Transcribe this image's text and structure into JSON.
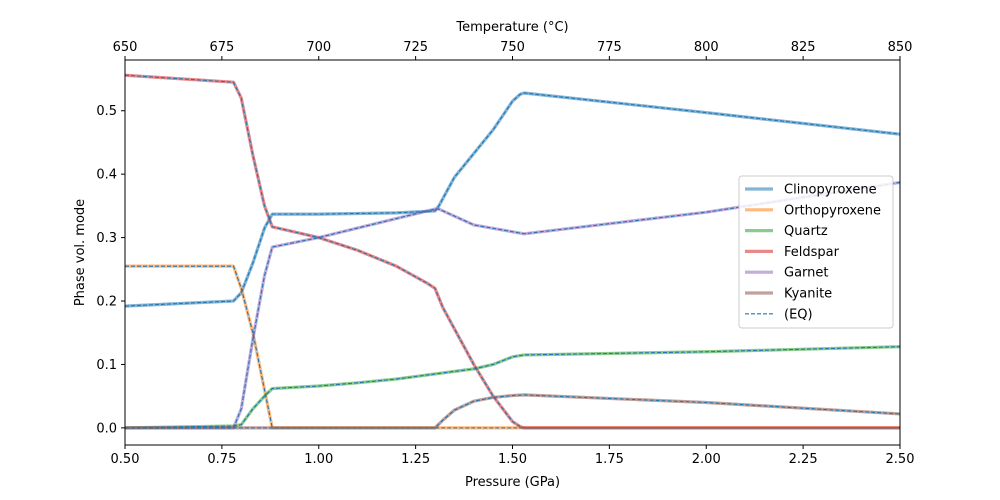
{
  "chart_data": {
    "type": "line",
    "xlabel": "Pressure (GPa)",
    "ylabel": "Phase vol. mode",
    "top_xlabel": "Temperature (°C)",
    "xlim": [
      0.5,
      2.5
    ],
    "ylim": [
      -0.027,
      0.58
    ],
    "top_xlim": [
      650,
      850
    ],
    "x_ticks": [
      0.5,
      0.75,
      1.0,
      1.25,
      1.5,
      1.75,
      2.0,
      2.25,
      2.5
    ],
    "x_tick_labels": [
      "0.50",
      "0.75",
      "1.00",
      "1.25",
      "1.50",
      "1.75",
      "2.00",
      "2.25",
      "2.50"
    ],
    "y_ticks": [
      0.0,
      0.1,
      0.2,
      0.3,
      0.4,
      0.5
    ],
    "y_tick_labels": [
      "0.0",
      "0.1",
      "0.2",
      "0.3",
      "0.4",
      "0.5"
    ],
    "top_ticks": [
      650,
      675,
      700,
      725,
      750,
      775,
      800,
      825,
      850
    ],
    "top_tick_labels": [
      "650",
      "675",
      "700",
      "725",
      "750",
      "775",
      "800",
      "825",
      "850"
    ],
    "grid": false,
    "legend_position": "center-right",
    "series": [
      {
        "name": "Clinopyroxene",
        "color": "#1f77b4",
        "x": [
          0.5,
          0.78,
          0.8,
          0.83,
          0.86,
          0.88,
          1.0,
          1.2,
          1.3,
          1.31,
          1.35,
          1.45,
          1.5,
          1.52,
          1.53,
          2.0,
          2.5
        ],
        "y": [
          0.192,
          0.2,
          0.213,
          0.26,
          0.315,
          0.337,
          0.337,
          0.339,
          0.342,
          0.35,
          0.395,
          0.47,
          0.515,
          0.526,
          0.528,
          0.497,
          0.463
        ]
      },
      {
        "name": "Orthopyroxene",
        "color": "#ff7f0e",
        "x": [
          0.5,
          0.78,
          0.8,
          0.83,
          0.86,
          0.88,
          2.5
        ],
        "y": [
          0.255,
          0.255,
          0.22,
          0.15,
          0.06,
          0.0,
          0.0
        ]
      },
      {
        "name": "Quartz",
        "color": "#2ca02c",
        "x": [
          0.5,
          0.78,
          0.8,
          0.83,
          0.86,
          0.88,
          1.0,
          1.1,
          1.2,
          1.3,
          1.4,
          1.45,
          1.5,
          1.53,
          2.0,
          2.5
        ],
        "y": [
          0.0,
          0.003,
          0.005,
          0.03,
          0.05,
          0.062,
          0.066,
          0.071,
          0.077,
          0.085,
          0.093,
          0.1,
          0.112,
          0.115,
          0.12,
          0.128
        ]
      },
      {
        "name": "Feldspar",
        "color": "#d62728",
        "x": [
          0.5,
          0.78,
          0.8,
          0.83,
          0.86,
          0.88,
          1.0,
          1.1,
          1.2,
          1.28,
          1.3,
          1.32,
          1.4,
          1.45,
          1.5,
          1.52,
          1.53,
          2.5
        ],
        "y": [
          0.556,
          0.545,
          0.52,
          0.43,
          0.35,
          0.317,
          0.3,
          0.28,
          0.255,
          0.228,
          0.22,
          0.19,
          0.1,
          0.05,
          0.01,
          0.002,
          0.0,
          0.0
        ]
      },
      {
        "name": "Garnet",
        "color": "#9467bd",
        "x": [
          0.5,
          0.78,
          0.8,
          0.83,
          0.86,
          0.88,
          1.0,
          1.1,
          1.2,
          1.3,
          1.31,
          1.4,
          1.53,
          2.0,
          2.5
        ],
        "y": [
          0.0,
          0.0,
          0.03,
          0.14,
          0.24,
          0.285,
          0.3,
          0.315,
          0.33,
          0.345,
          0.345,
          0.32,
          0.306,
          0.34,
          0.387
        ]
      },
      {
        "name": "Kyanite",
        "color": "#8c564b",
        "x": [
          0.5,
          1.3,
          1.32,
          1.35,
          1.4,
          1.45,
          1.5,
          1.53,
          2.0,
          2.5
        ],
        "y": [
          0.0,
          0.0,
          0.012,
          0.028,
          0.042,
          0.048,
          0.051,
          0.052,
          0.04,
          0.022
        ]
      }
    ],
    "eq_name": "(EQ)",
    "eq_color": "#1f77b4"
  }
}
